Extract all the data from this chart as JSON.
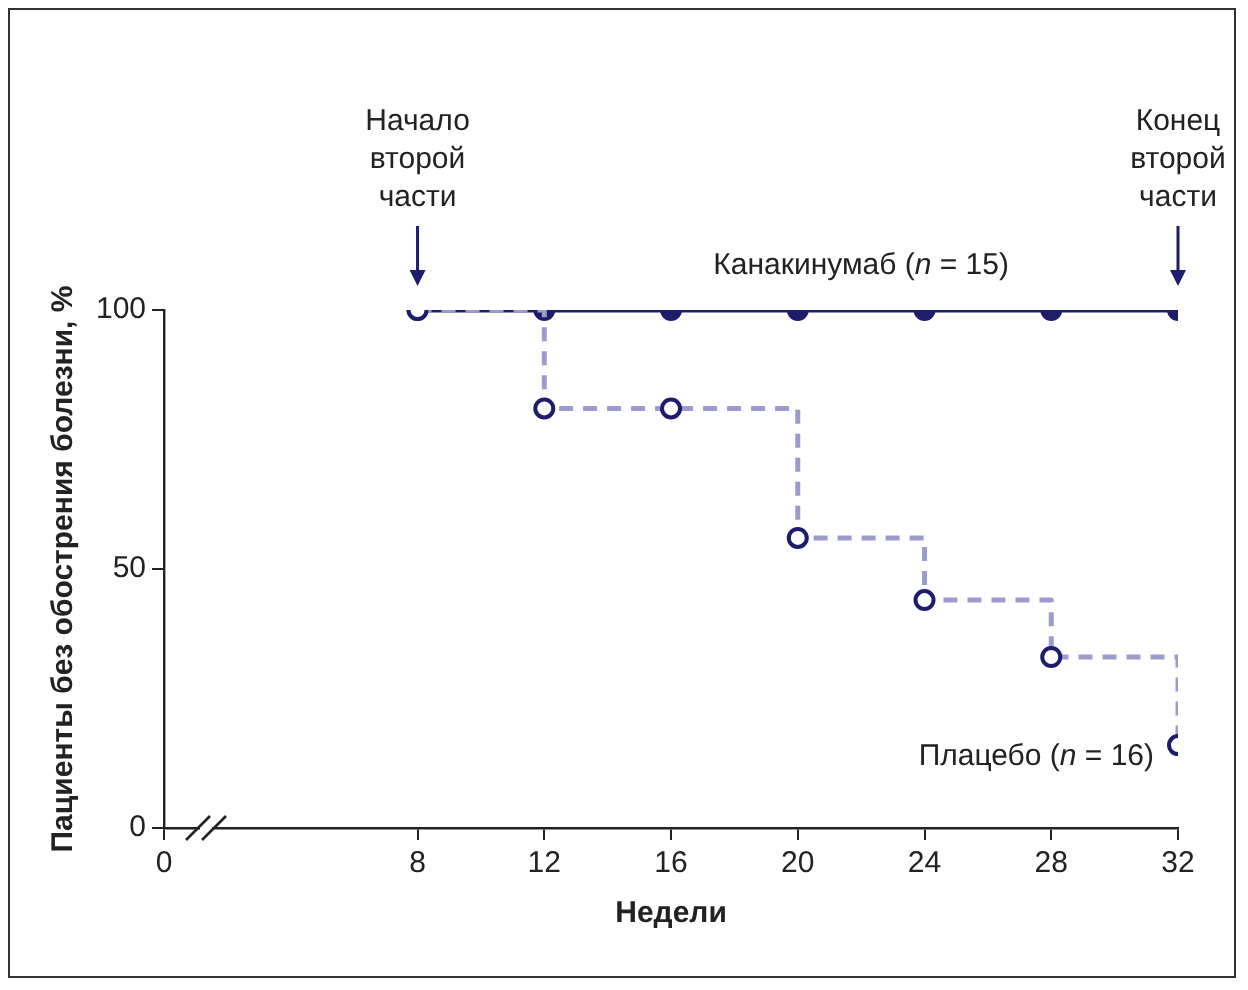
{
  "chart_data": {
    "type": "line",
    "xlabel": "Недели",
    "ylabel": "Пациенты без обострения болезни, %",
    "x": [
      8,
      12,
      16,
      20,
      24,
      28,
      32
    ],
    "series": [
      {
        "name": "Канакинумаб (n = 15)",
        "color": "#1f1c6b",
        "values": [
          100,
          100,
          100,
          100,
          100,
          100,
          100
        ],
        "line_style": "solid"
      },
      {
        "name": "Плацебо (n = 16)",
        "type": "step",
        "color": "#9d9bcc",
        "values": [
          100,
          81,
          81,
          56,
          44,
          33,
          16
        ],
        "line_style": "dashed"
      }
    ],
    "xlim": [
      0,
      32
    ],
    "xticks": [
      0,
      8,
      12,
      16,
      20,
      24,
      28,
      32
    ],
    "ylim": [
      0,
      100
    ],
    "yticks": [
      0,
      50,
      100
    ],
    "grid": false,
    "legend": false,
    "marker": "circle",
    "annotations": [
      "Начало\nвторой\nчасти",
      "Конец\nвторой\nчасти"
    ]
  }
}
